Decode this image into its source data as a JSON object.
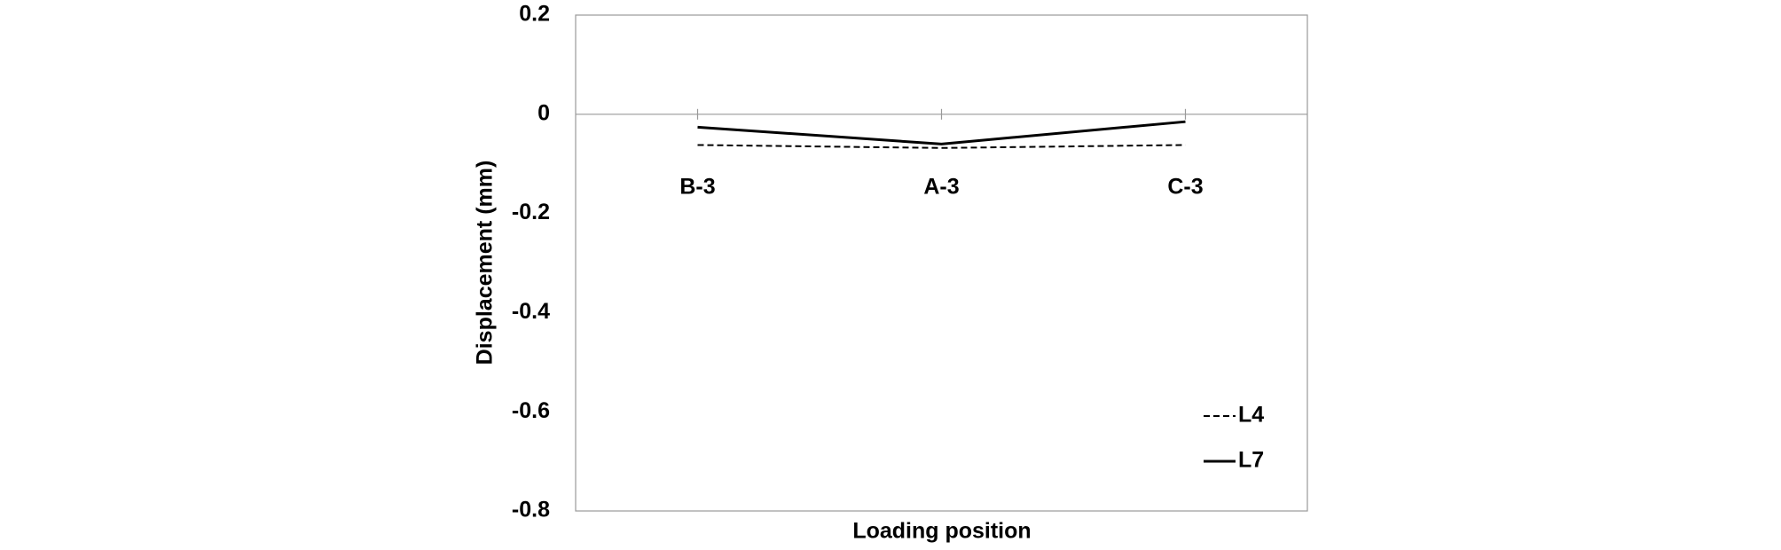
{
  "chart_data": {
    "type": "line",
    "x_label": "Loading position",
    "y_label": "Displacement (mm)",
    "categories": [
      "B-3",
      "A-3",
      "C-3"
    ],
    "series": [
      {
        "name": "L4",
        "color": "#000000",
        "line_style": "dashed",
        "values": [
          -0.062,
          -0.068,
          -0.062
        ]
      },
      {
        "name": "L7",
        "color": "#000000",
        "line_style": "solid",
        "values": [
          -0.026,
          -0.06,
          -0.015
        ]
      }
    ],
    "ylim": [
      -0.8,
      0.2
    ],
    "yticks": [
      0.2,
      0,
      -0.2,
      -0.4,
      -0.6,
      -0.8
    ],
    "grid": false,
    "legend": "lower right"
  }
}
